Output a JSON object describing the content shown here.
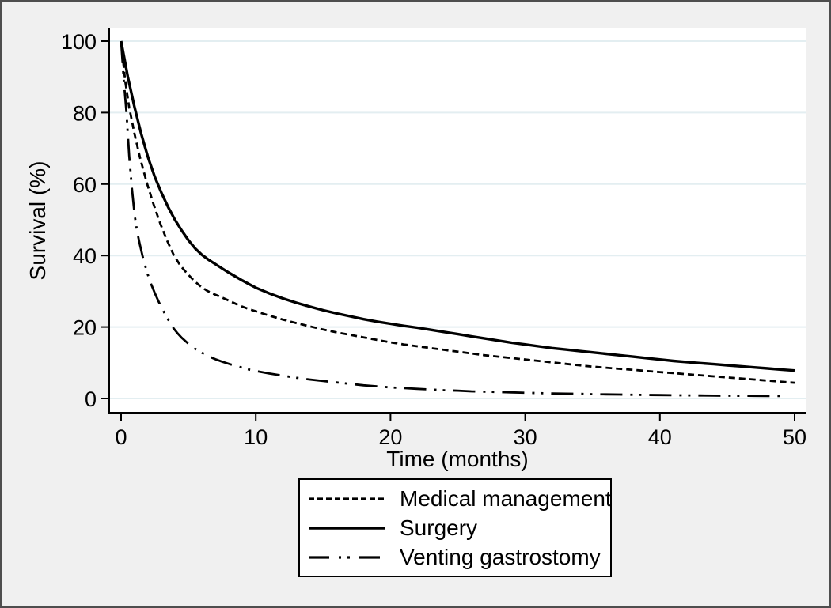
{
  "style": {
    "background_color": "#f0f0f0",
    "plot_background": "#ffffff",
    "gridline_color": "#e3eef1",
    "axis_color": "#000000",
    "line_color": "#000000",
    "border_color": "#4e4e4e",
    "legend_background": "#ffffff",
    "legend_border": "#000000"
  },
  "chart_data": {
    "type": "line",
    "xlabel": "Time (months)",
    "ylabel": "Survival (%)",
    "xlim": [
      0,
      50
    ],
    "ylim": [
      0,
      100
    ],
    "x_ticks": [
      0,
      10,
      20,
      30,
      40,
      50
    ],
    "y_ticks": [
      0,
      20,
      40,
      60,
      80,
      100
    ],
    "grid": "horizontal",
    "legend_position": "below-outside",
    "series": [
      {
        "name": "Medical management",
        "line_style": "dashed",
        "points": [
          [
            0,
            100
          ],
          [
            0.3,
            89
          ],
          [
            0.6,
            81.5
          ],
          [
            1,
            74
          ],
          [
            1.4,
            67.5
          ],
          [
            1.9,
            60.5
          ],
          [
            2.4,
            54.5
          ],
          [
            2.9,
            49
          ],
          [
            3.4,
            44.3
          ],
          [
            3.9,
            40.2
          ],
          [
            4.4,
            37.2
          ],
          [
            4.9,
            35
          ],
          [
            5.4,
            33
          ],
          [
            5.9,
            31.4
          ],
          [
            6.4,
            30.1
          ],
          [
            6.9,
            29.2
          ],
          [
            7.4,
            28.4
          ],
          [
            8,
            27.4
          ],
          [
            8.5,
            26.5
          ],
          [
            9,
            25.7
          ],
          [
            9.5,
            25
          ],
          [
            10,
            24.4
          ],
          [
            10.5,
            23.8
          ],
          [
            11,
            23.2
          ],
          [
            12,
            22.1
          ],
          [
            13,
            21.1
          ],
          [
            14,
            20.2
          ],
          [
            15,
            19.3
          ],
          [
            16,
            18.5
          ],
          [
            17,
            17.8
          ],
          [
            18,
            17.1
          ],
          [
            19,
            16.4
          ],
          [
            20,
            15.7
          ],
          [
            21,
            15.1
          ],
          [
            22,
            14.6
          ],
          [
            23,
            14.1
          ],
          [
            24,
            13.6
          ],
          [
            25,
            13.1
          ],
          [
            26,
            12.6
          ],
          [
            27,
            12.1
          ],
          [
            28,
            11.7
          ],
          [
            29,
            11.3
          ],
          [
            30,
            10.9
          ],
          [
            31,
            10.5
          ],
          [
            32,
            10.1
          ],
          [
            33,
            9.7
          ],
          [
            34,
            9.3
          ],
          [
            35,
            8.9
          ],
          [
            36,
            8.6
          ],
          [
            37,
            8.3
          ],
          [
            38,
            8.0
          ],
          [
            39,
            7.7
          ],
          [
            40,
            7.4
          ],
          [
            41,
            7.1
          ],
          [
            42,
            6.8
          ],
          [
            43,
            6.5
          ],
          [
            44,
            6.2
          ],
          [
            45,
            5.9
          ],
          [
            46,
            5.6
          ],
          [
            47,
            5.3
          ],
          [
            48,
            5.0
          ],
          [
            49,
            4.7
          ],
          [
            50,
            4.4
          ]
        ]
      },
      {
        "name": "Surgery",
        "line_style": "solid",
        "points": [
          [
            0,
            100
          ],
          [
            0.5,
            90
          ],
          [
            1,
            81.5
          ],
          [
            1.5,
            74
          ],
          [
            2,
            67.5
          ],
          [
            2.5,
            62
          ],
          [
            3,
            57.5
          ],
          [
            3.5,
            53.5
          ],
          [
            4,
            50
          ],
          [
            4.5,
            47
          ],
          [
            5,
            44.3
          ],
          [
            5.5,
            42
          ],
          [
            6,
            40.2
          ],
          [
            6.5,
            38.8
          ],
          [
            7,
            37.6
          ],
          [
            7.5,
            36.4
          ],
          [
            8,
            35.2
          ],
          [
            8.5,
            34.1
          ],
          [
            9,
            33
          ],
          [
            9.5,
            32
          ],
          [
            10,
            31
          ],
          [
            11,
            29.4
          ],
          [
            12,
            28
          ],
          [
            13,
            26.8
          ],
          [
            14,
            25.7
          ],
          [
            15,
            24.7
          ],
          [
            16,
            23.8
          ],
          [
            17,
            23
          ],
          [
            18,
            22.2
          ],
          [
            19,
            21.5
          ],
          [
            20,
            20.9
          ],
          [
            21,
            20.3
          ],
          [
            22,
            19.8
          ],
          [
            23,
            19.2
          ],
          [
            24,
            18.6
          ],
          [
            25,
            18
          ],
          [
            26,
            17.4
          ],
          [
            27,
            16.8
          ],
          [
            28,
            16.2
          ],
          [
            29,
            15.6
          ],
          [
            30,
            15.1
          ],
          [
            31,
            14.6
          ],
          [
            32,
            14.1
          ],
          [
            33,
            13.7
          ],
          [
            34,
            13.3
          ],
          [
            35,
            12.9
          ],
          [
            36,
            12.5
          ],
          [
            37,
            12.1
          ],
          [
            38,
            11.7
          ],
          [
            39,
            11.3
          ],
          [
            40,
            10.9
          ],
          [
            41,
            10.5
          ],
          [
            42,
            10.2
          ],
          [
            43,
            9.9
          ],
          [
            44,
            9.6
          ],
          [
            45,
            9.3
          ],
          [
            46,
            9.0
          ],
          [
            47,
            8.7
          ],
          [
            48,
            8.4
          ],
          [
            49,
            8.1
          ],
          [
            50,
            7.8
          ]
        ]
      },
      {
        "name": "Venting gastrostomy",
        "line_style": "long-dash-dot-dot",
        "points": [
          [
            0,
            100
          ],
          [
            0.2,
            89
          ],
          [
            0.4,
            80
          ],
          [
            0.6,
            68
          ],
          [
            0.8,
            59
          ],
          [
            1,
            51.5
          ],
          [
            1.2,
            46.5
          ],
          [
            1.4,
            43
          ],
          [
            1.6,
            39.8
          ],
          [
            1.8,
            37
          ],
          [
            2,
            34.5
          ],
          [
            2.2,
            32.3
          ],
          [
            2.5,
            29.5
          ],
          [
            2.8,
            27
          ],
          [
            3,
            25.5
          ],
          [
            3.3,
            23.3
          ],
          [
            3.6,
            21.4
          ],
          [
            3.9,
            19.6
          ],
          [
            4.2,
            18.2
          ],
          [
            4.5,
            17
          ],
          [
            5,
            15.3
          ],
          [
            5.5,
            13.9
          ],
          [
            6,
            12.8
          ],
          [
            6.5,
            11.8
          ],
          [
            7,
            11
          ],
          [
            7.5,
            10.3
          ],
          [
            8,
            9.7
          ],
          [
            8.5,
            9.1
          ],
          [
            9,
            8.6
          ],
          [
            9.5,
            8.1
          ],
          [
            10,
            7.7
          ],
          [
            11,
            7.0
          ],
          [
            12,
            6.4
          ],
          [
            13,
            5.8
          ],
          [
            14,
            5.3
          ],
          [
            15,
            4.9
          ],
          [
            16,
            4.5
          ],
          [
            17,
            4.1
          ],
          [
            18,
            3.7
          ],
          [
            19,
            3.4
          ],
          [
            20,
            3.1
          ],
          [
            21,
            2.9
          ],
          [
            22,
            2.7
          ],
          [
            23,
            2.5
          ],
          [
            24,
            2.3
          ],
          [
            25,
            2.2
          ],
          [
            26,
            2.0
          ],
          [
            27,
            1.9
          ],
          [
            28,
            1.8
          ],
          [
            29,
            1.7
          ],
          [
            30,
            1.6
          ],
          [
            31,
            1.5
          ],
          [
            32,
            1.4
          ],
          [
            33,
            1.35
          ],
          [
            34,
            1.3
          ],
          [
            35,
            1.2
          ],
          [
            36,
            1.15
          ],
          [
            37,
            1.1
          ],
          [
            38,
            1.05
          ],
          [
            39,
            1.0
          ],
          [
            40,
            0.95
          ],
          [
            41,
            0.9
          ],
          [
            42,
            0.87
          ],
          [
            43,
            0.84
          ],
          [
            44,
            0.8
          ],
          [
            45,
            0.78
          ],
          [
            46,
            0.75
          ],
          [
            47,
            0.72
          ],
          [
            48,
            0.7
          ],
          [
            49,
            0.68
          ]
        ]
      }
    ]
  },
  "legend": {
    "items": [
      {
        "label": "Medical management"
      },
      {
        "label": "Surgery"
      },
      {
        "label": "Venting gastrostomy"
      }
    ]
  }
}
